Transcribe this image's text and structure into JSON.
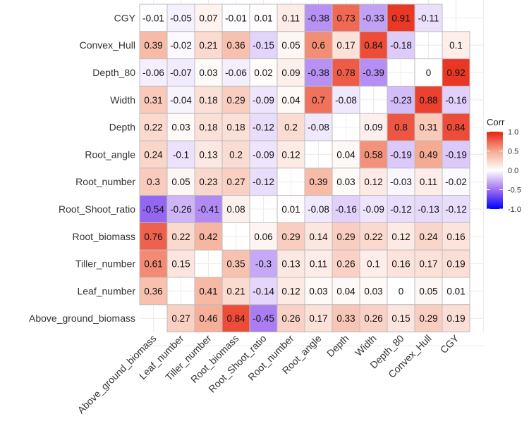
{
  "chart_data": {
    "type": "heatmap",
    "title": "",
    "legend": {
      "title": "Corr",
      "ticks": [
        "1.0",
        "0.5",
        "0.0",
        "-0.5",
        "-1.0"
      ],
      "tick_values": [
        1,
        0.5,
        0,
        -0.5,
        -1
      ],
      "placement": "right"
    },
    "colors": {
      "low": "#0000FF",
      "mid": "#FFFFFF",
      "high": "#E8200F"
    },
    "x_labels": [
      "Above_ground_biomass",
      "Leaf_number",
      "Tiller_number",
      "Root_biomass",
      "Root_Shoot_ratio",
      "Root_number",
      "Root_angle",
      "Depth",
      "Width",
      "Depth_80",
      "Convex_Hull",
      "CGY"
    ],
    "y_labels": [
      "CGY",
      "Convex_Hull",
      "Depth_80",
      "Width",
      "Depth",
      "Root_angle",
      "Root_number",
      "Root_Shoot_ratio",
      "Root_biomass",
      "Tiller_number",
      "Leaf_number",
      "Above_ground_biomass"
    ],
    "values": [
      [
        -0.01,
        -0.05,
        0.07,
        -0.01,
        0.01,
        0.11,
        -0.38,
        0.73,
        -0.33,
        0.91,
        -0.11,
        null
      ],
      [
        0.39,
        -0.02,
        0.21,
        0.36,
        -0.15,
        0.05,
        0.6,
        0.17,
        0.84,
        -0.18,
        null,
        0.1
      ],
      [
        -0.06,
        -0.07,
        0.03,
        -0.06,
        0.02,
        0.09,
        -0.38,
        0.78,
        -0.39,
        null,
        0,
        0.92
      ],
      [
        0.31,
        -0.04,
        0.18,
        0.29,
        -0.09,
        0.04,
        0.7,
        -0.08,
        null,
        -0.23,
        0.88,
        -0.16
      ],
      [
        0.22,
        0.03,
        0.18,
        0.18,
        -0.12,
        0.2,
        -0.08,
        null,
        0.09,
        0.8,
        0.31,
        0.84
      ],
      [
        0.24,
        -0.1,
        0.13,
        0.2,
        -0.09,
        0.12,
        null,
        0.04,
        0.58,
        -0.19,
        0.49,
        -0.19
      ],
      [
        0.3,
        0.05,
        0.23,
        0.27,
        -0.12,
        null,
        0.39,
        0.03,
        0.12,
        -0.03,
        0.11,
        -0.02
      ],
      [
        -0.54,
        -0.26,
        -0.41,
        0.08,
        null,
        0.01,
        -0.08,
        -0.16,
        -0.09,
        -0.12,
        -0.13,
        -0.12
      ],
      [
        0.76,
        0.22,
        0.42,
        null,
        0.06,
        0.29,
        0.14,
        0.29,
        0.22,
        0.12,
        0.24,
        0.16
      ],
      [
        0.61,
        0.15,
        null,
        0.35,
        -0.3,
        0.13,
        0.11,
        0.26,
        0.1,
        0.16,
        0.17,
        0.19
      ],
      [
        0.36,
        null,
        0.41,
        0.21,
        -0.14,
        0.12,
        0.03,
        0.04,
        0.03,
        0,
        0.05,
        0.01
      ],
      [
        null,
        0.27,
        0.46,
        0.84,
        -0.45,
        0.26,
        0.17,
        0.33,
        0.26,
        0.15,
        0.29,
        0.19
      ]
    ]
  }
}
